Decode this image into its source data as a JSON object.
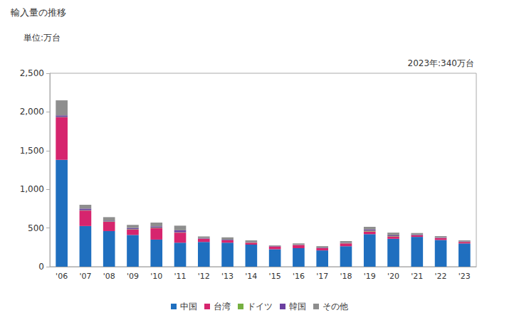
{
  "chart_data": {
    "type": "bar",
    "title": "輸入量の推移",
    "y_label": "単位:万台",
    "annotation": "2023年:340万台",
    "stacked": true,
    "grid": false,
    "legend": "bottom",
    "categories": [
      "'06",
      "'07",
      "'08",
      "'09",
      "'10",
      "'11",
      "'12",
      "'13",
      "'14",
      "'15",
      "'16",
      "'17",
      "'18",
      "'19",
      "'20",
      "'21",
      "'22",
      "'23"
    ],
    "series": [
      {
        "name": "中国",
        "color": "#1f6fbf",
        "values": [
          1380,
          525,
          460,
          410,
          350,
          310,
          320,
          310,
          285,
          225,
          240,
          210,
          265,
          420,
          360,
          385,
          345,
          300
        ]
      },
      {
        "name": "台湾",
        "color": "#d6256e",
        "values": [
          550,
          200,
          120,
          70,
          150,
          130,
          40,
          30,
          25,
          35,
          40,
          30,
          35,
          35,
          30,
          20,
          25,
          20
        ]
      },
      {
        "name": "ドイツ",
        "color": "#76b041",
        "values": [
          5,
          5,
          5,
          5,
          5,
          5,
          3,
          3,
          3,
          2,
          3,
          3,
          3,
          10,
          5,
          3,
          3,
          3
        ]
      },
      {
        "name": "韓国",
        "color": "#6b3fa0",
        "values": [
          20,
          20,
          10,
          15,
          15,
          25,
          7,
          7,
          5,
          5,
          5,
          5,
          5,
          15,
          10,
          7,
          7,
          5
        ]
      },
      {
        "name": "その他",
        "color": "#8e8e8e",
        "values": [
          195,
          50,
          45,
          40,
          50,
          60,
          20,
          30,
          22,
          8,
          12,
          17,
          22,
          35,
          35,
          20,
          15,
          12
        ]
      }
    ],
    "ylim": [
      0,
      2500
    ],
    "yticks": [
      0,
      500,
      {
        "value": 1000,
        "label": "1,000"
      },
      {
        "value": 1500,
        "label": "1,500"
      },
      {
        "value": 2000,
        "label": "2,000"
      },
      {
        "value": 2500,
        "label": "2,500"
      }
    ]
  }
}
